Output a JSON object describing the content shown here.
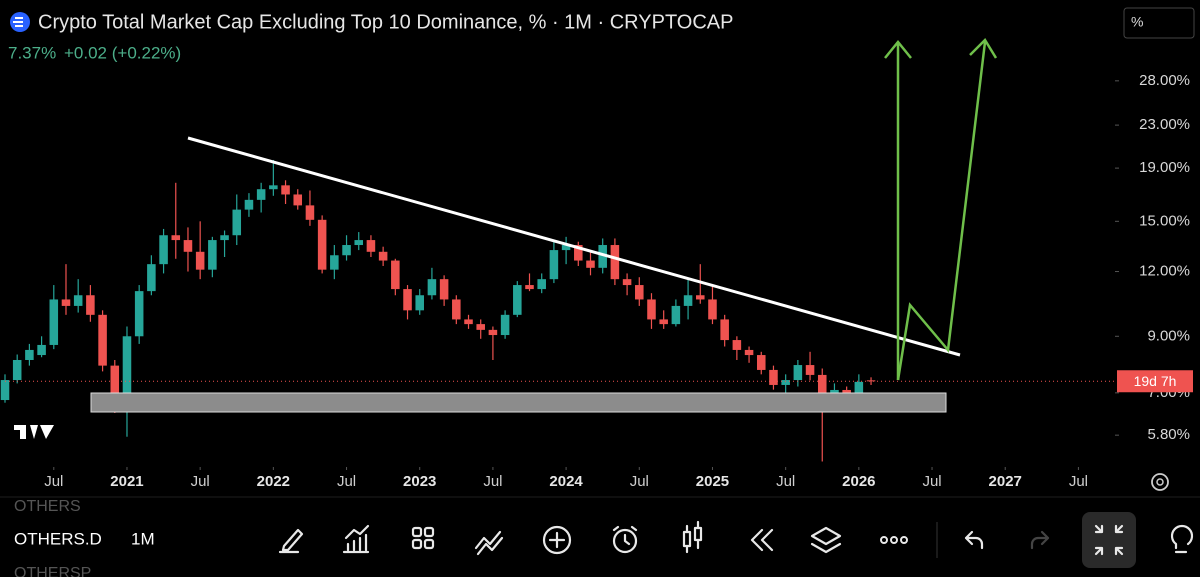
{
  "header": {
    "title": "Crypto Total Market Cap Excluding Top 10 Dominance, % · 1M · CRYPTOCAP",
    "price": "7.37%",
    "change": "+0.02 (+0.22%)",
    "scale_button": "%"
  },
  "chart_data": {
    "type": "candlestick",
    "log": true,
    "up_color": "#26a69a",
    "down_color": "#ef5350",
    "countdown": "19d 7h",
    "x": [
      "2020-03",
      "2020-04",
      "2020-05",
      "2020-06",
      "2020-07",
      "2020-08",
      "2020-09",
      "2020-10",
      "2020-11",
      "2020-12",
      "2021-01",
      "2021-02",
      "2021-03",
      "2021-04",
      "2021-05",
      "2021-06",
      "2021-07",
      "2021-08",
      "2021-09",
      "2021-10",
      "2021-11",
      "2021-12",
      "2022-01",
      "2022-02",
      "2022-03",
      "2022-04",
      "2022-05",
      "2022-06",
      "2022-07",
      "2022-08",
      "2022-09",
      "2022-10",
      "2022-11",
      "2022-12",
      "2023-01",
      "2023-02",
      "2023-03",
      "2023-04",
      "2023-05",
      "2023-06",
      "2023-07",
      "2023-08",
      "2023-09",
      "2023-10",
      "2023-11",
      "2023-12",
      "2024-01",
      "2024-02",
      "2024-03",
      "2024-04",
      "2024-05",
      "2024-06",
      "2024-07",
      "2024-08",
      "2024-09",
      "2024-10",
      "2024-11",
      "2024-12",
      "2025-01",
      "2025-02",
      "2025-03",
      "2025-04",
      "2025-05",
      "2025-06",
      "2025-07",
      "2025-08",
      "2025-09",
      "2025-10",
      "2025-11",
      "2025-12",
      "2026-01",
      "2026-02"
    ],
    "open": [
      6.78,
      7.41,
      8.1,
      8.28,
      8.66,
      10.6,
      10.3,
      10.8,
      9.9,
      7.9,
      6.5,
      9.0,
      11.0,
      12.4,
      14.1,
      13.8,
      13.1,
      12.1,
      13.8,
      14.1,
      15.8,
      16.5,
      17.3,
      17.6,
      16.9,
      16.1,
      15.1,
      12.1,
      12.9,
      13.5,
      13.8,
      13.1,
      12.6,
      11.1,
      10.1,
      10.8,
      11.6,
      10.6,
      9.7,
      9.5,
      9.26,
      9.05,
      9.9,
      11.3,
      11.1,
      11.6,
      13.2,
      13.5,
      12.6,
      12.2,
      13.5,
      11.6,
      11.3,
      10.6,
      9.7,
      9.5,
      10.3,
      10.8,
      10.6,
      9.7,
      8.85,
      8.47,
      8.28,
      7.75,
      7.25,
      7.41,
      7.92,
      7.58,
      6.93,
      7.09,
      6.93,
      7.4
    ],
    "high": [
      7.6,
      8.3,
      8.7,
      9.0,
      11.3,
      12.4,
      11.6,
      11.3,
      10.1,
      8.1,
      9.4,
      11.3,
      12.9,
      14.5,
      17.8,
      14.6,
      15.0,
      14.0,
      14.4,
      16.9,
      17.0,
      17.8,
      19.7,
      18.0,
      17.3,
      17.2,
      15.4,
      13.5,
      14.1,
      14.3,
      14.1,
      13.4,
      12.7,
      11.3,
      11.1,
      12.2,
      11.8,
      10.8,
      9.9,
      9.7,
      9.4,
      10.1,
      11.5,
      11.9,
      11.9,
      13.8,
      14.0,
      13.7,
      13.1,
      13.9,
      13.9,
      11.9,
      11.7,
      10.9,
      10.1,
      10.6,
      11.6,
      12.4,
      11.3,
      9.9,
      9.0,
      8.6,
      8.4,
      7.9,
      7.6,
      8.1,
      8.4,
      7.8,
      7.3,
      7.2,
      7.6,
      7.5
    ],
    "low": [
      6.7,
      7.3,
      7.9,
      8.2,
      8.5,
      9.9,
      10.0,
      9.6,
      7.7,
      6.4,
      5.76,
      8.7,
      10.8,
      11.9,
      12.7,
      12.0,
      11.6,
      11.7,
      12.8,
      13.5,
      15.3,
      15.6,
      16.8,
      16.2,
      15.8,
      14.7,
      11.9,
      11.6,
      12.6,
      13.2,
      12.8,
      12.3,
      10.8,
      9.7,
      9.9,
      10.6,
      10.3,
      9.5,
      9.3,
      8.9,
      8.1,
      8.9,
      9.8,
      11.0,
      10.9,
      11.4,
      12.4,
      12.3,
      11.8,
      11.9,
      11.3,
      10.8,
      10.3,
      9.3,
      9.3,
      9.4,
      9.7,
      10.4,
      9.5,
      8.6,
      8.1,
      8.0,
      7.6,
      7.1,
      7.0,
      7.2,
      7.4,
      5.16,
      6.6,
      6.6,
      6.8,
      7.25
    ],
    "close": [
      7.41,
      8.1,
      8.47,
      8.66,
      10.6,
      10.3,
      10.8,
      9.9,
      7.9,
      6.5,
      9.0,
      11.0,
      12.4,
      14.1,
      13.8,
      13.1,
      12.1,
      13.8,
      14.1,
      15.8,
      16.5,
      17.3,
      17.6,
      16.9,
      16.1,
      15.1,
      12.1,
      12.9,
      13.5,
      13.8,
      13.1,
      12.6,
      11.1,
      10.1,
      10.8,
      11.6,
      10.6,
      9.7,
      9.5,
      9.26,
      9.05,
      9.9,
      11.3,
      11.1,
      11.6,
      13.2,
      13.5,
      12.6,
      12.2,
      13.5,
      11.6,
      11.3,
      10.6,
      9.7,
      9.5,
      10.3,
      10.8,
      10.6,
      9.7,
      8.85,
      8.47,
      8.28,
      7.75,
      7.25,
      7.41,
      7.92,
      7.58,
      6.93,
      7.09,
      6.93,
      7.35,
      7.37
    ],
    "xlim": [
      "2020-03",
      "2027-10"
    ],
    "xticks": [
      {
        "value": "2020-07",
        "label": "Jul"
      },
      {
        "value": "2021-01",
        "label": "2021"
      },
      {
        "value": "2021-07",
        "label": "Jul"
      },
      {
        "value": "2022-01",
        "label": "2022"
      },
      {
        "value": "2022-07",
        "label": "Jul"
      },
      {
        "value": "2023-01",
        "label": "2023"
      },
      {
        "value": "2023-07",
        "label": "Jul"
      },
      {
        "value": "2024-01",
        "label": "2024"
      },
      {
        "value": "2024-07",
        "label": "Jul"
      },
      {
        "value": "2025-01",
        "label": "2025"
      },
      {
        "value": "2025-07",
        "label": "Jul"
      },
      {
        "value": "2026-01",
        "label": "2026"
      },
      {
        "value": "2026-07",
        "label": "Jul"
      },
      {
        "value": "2027-01",
        "label": "2027"
      },
      {
        "value": "2027-07",
        "label": "Jul"
      }
    ],
    "ylim": [
      5.08,
      40.1
    ],
    "yticks": [
      {
        "value": 28,
        "label": "28.00%"
      },
      {
        "value": 23,
        "label": "23.00%"
      },
      {
        "value": 19,
        "label": "19.00%"
      },
      {
        "value": 15,
        "label": "15.00%"
      },
      {
        "value": 12,
        "label": "12.00%"
      },
      {
        "value": 9,
        "label": "9.00%"
      },
      {
        "value": 7,
        "label": "7.00%"
      },
      {
        "value": 5.8,
        "label": "5.80%"
      }
    ]
  },
  "toolbar": {
    "symbol_prev": "OTHERS",
    "symbol": "OTHERS.D",
    "interval": "1M",
    "symbol_next": "OTHERSP"
  }
}
